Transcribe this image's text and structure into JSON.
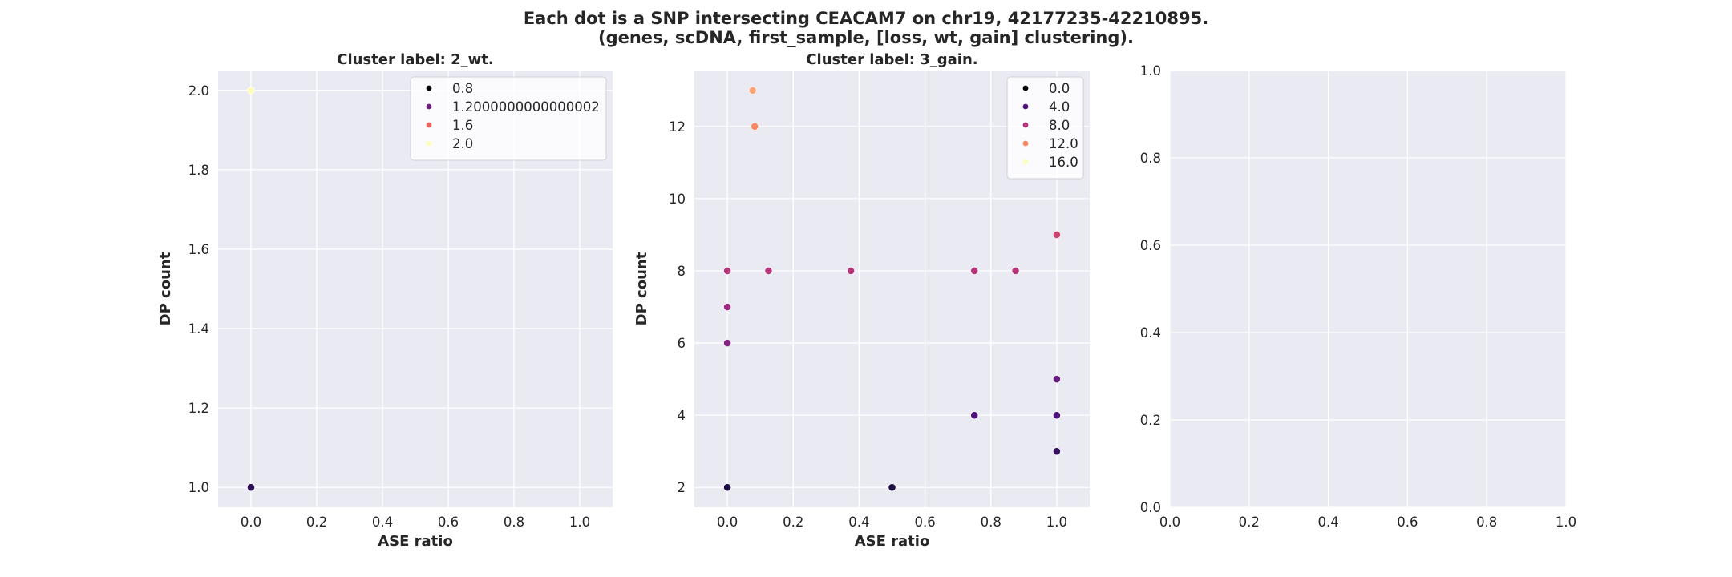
{
  "figure": {
    "title_line1": "Each dot is a SNP intersecting CEACAM7 on chr19, 42177235-42210895.",
    "title_line2": "(genes, scDNA, first_sample, [loss, wt, gain] clustering)."
  },
  "chart_data": [
    {
      "type": "scatter",
      "title": "Cluster label: 2_wt.",
      "xlabel": "ASE ratio",
      "ylabel": "DP count",
      "xlim": [
        -0.1,
        1.1
      ],
      "ylim": [
        0.95,
        2.05
      ],
      "xticks": [
        "0.0",
        "0.2",
        "0.4",
        "0.6",
        "0.8",
        "1.0"
      ],
      "yticks": [
        "1.0",
        "1.2",
        "1.4",
        "1.6",
        "1.8",
        "2.0"
      ],
      "grid": true,
      "legend_position": "top-right",
      "hue_range": [
        0.8,
        2.0
      ],
      "legend": [
        {
          "label": "0.8",
          "value": 0.8
        },
        {
          "label": "1.2000000000000002",
          "value": 1.2
        },
        {
          "label": "1.6",
          "value": 1.6
        },
        {
          "label": "2.0",
          "value": 2.0
        }
      ],
      "points": [
        {
          "x": 0.0,
          "y": 1,
          "hue": 1
        },
        {
          "x": 0.0,
          "y": 2,
          "hue": 2
        }
      ]
    },
    {
      "type": "scatter",
      "title": "Cluster label: 3_gain.",
      "xlabel": "ASE ratio",
      "ylabel": "DP count",
      "xlim": [
        -0.1,
        1.1
      ],
      "ylim": [
        1.45,
        13.55
      ],
      "xticks": [
        "0.0",
        "0.2",
        "0.4",
        "0.6",
        "0.8",
        "1.0"
      ],
      "yticks": [
        "2",
        "4",
        "6",
        "8",
        "10",
        "12"
      ],
      "grid": true,
      "legend_position": "top-right",
      "hue_range": [
        0,
        16
      ],
      "legend": [
        {
          "label": "0.0",
          "value": 0
        },
        {
          "label": "4.0",
          "value": 4
        },
        {
          "label": "8.0",
          "value": 8
        },
        {
          "label": "12.0",
          "value": 12
        },
        {
          "label": "16.0",
          "value": 16
        }
      ],
      "points": [
        {
          "x": 0.0,
          "y": 2,
          "hue": 2
        },
        {
          "x": 0.5,
          "y": 2,
          "hue": 2
        },
        {
          "x": 1.0,
          "y": 3,
          "hue": 3
        },
        {
          "x": 0.75,
          "y": 4,
          "hue": 4
        },
        {
          "x": 1.0,
          "y": 4,
          "hue": 4
        },
        {
          "x": 1.0,
          "y": 5,
          "hue": 5
        },
        {
          "x": 0.0,
          "y": 6,
          "hue": 6
        },
        {
          "x": 0.0,
          "y": 7,
          "hue": 7
        },
        {
          "x": 0.0,
          "y": 8,
          "hue": 8
        },
        {
          "x": 0.125,
          "y": 8,
          "hue": 8
        },
        {
          "x": 0.375,
          "y": 8,
          "hue": 8
        },
        {
          "x": 0.75,
          "y": 8,
          "hue": 8
        },
        {
          "x": 0.875,
          "y": 8,
          "hue": 8
        },
        {
          "x": 1.0,
          "y": 9,
          "hue": 9
        },
        {
          "x": 0.083,
          "y": 12,
          "hue": 12
        },
        {
          "x": 0.077,
          "y": 13,
          "hue": 13
        }
      ]
    },
    {
      "type": "scatter",
      "title": "",
      "xlabel": "",
      "ylabel": "",
      "xlim": [
        0,
        1
      ],
      "ylim": [
        0,
        1
      ],
      "xticks": [
        "0.0",
        "0.2",
        "0.4",
        "0.6",
        "0.8",
        "1.0"
      ],
      "yticks": [
        "0.0",
        "0.2",
        "0.4",
        "0.6",
        "0.8",
        "1.0"
      ],
      "grid": true,
      "legend": [],
      "points": []
    }
  ]
}
